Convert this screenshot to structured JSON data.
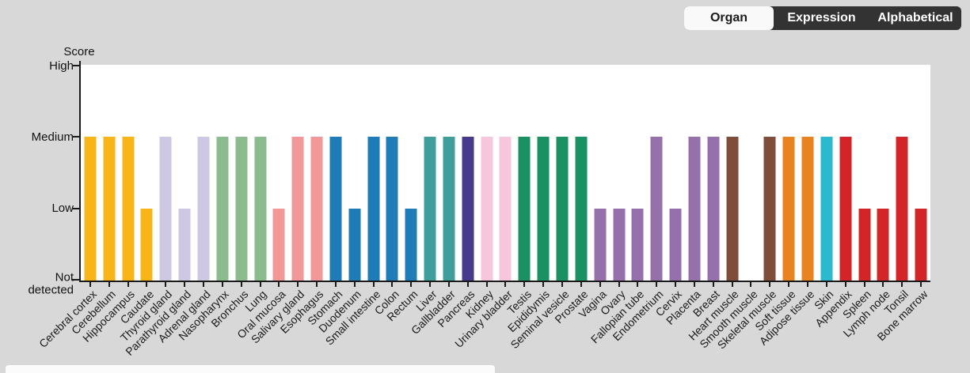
{
  "toolbar": {
    "options": [
      {
        "label": "Organ",
        "selected": true
      },
      {
        "label": "Expression",
        "selected": false
      },
      {
        "label": "Alphabetical",
        "selected": false
      }
    ]
  },
  "colors": {
    "background": "#d8d8d8",
    "plot_background": "#ffffff",
    "axis": "#1a1a1a",
    "toggle_bar": "#333333",
    "toggle_selected": "#f9f9f9"
  },
  "chart_data": {
    "type": "bar",
    "ylabel": "Score",
    "y_ticks": [
      "High",
      "Medium",
      "Low",
      "Not detected"
    ],
    "score_levels": {
      "Not detected": 0,
      "Low": 1,
      "Medium": 2,
      "High": 3
    },
    "ylim": [
      0,
      3
    ],
    "grid": false,
    "legend": false,
    "x_label_rotation": -45,
    "points": [
      {
        "tissue": "Cerebral cortex",
        "score": "Medium",
        "color": "#F9B517"
      },
      {
        "tissue": "Cerebellum",
        "score": "Medium",
        "color": "#F9B517"
      },
      {
        "tissue": "Hippocampus",
        "score": "Medium",
        "color": "#F9B517"
      },
      {
        "tissue": "Caudate",
        "score": "Low",
        "color": "#F9B517"
      },
      {
        "tissue": "Thyroid gland",
        "score": "Medium",
        "color": "#CFC8E2"
      },
      {
        "tissue": "Parathyroid gland",
        "score": "Low",
        "color": "#CFC8E2"
      },
      {
        "tissue": "Adrenal gland",
        "score": "Medium",
        "color": "#CFC8E2"
      },
      {
        "tissue": "Nasopharynx",
        "score": "Medium",
        "color": "#8CBB8D"
      },
      {
        "tissue": "Bronchus",
        "score": "Medium",
        "color": "#8CBB8D"
      },
      {
        "tissue": "Lung",
        "score": "Medium",
        "color": "#8CBB8D"
      },
      {
        "tissue": "Oral mucosa",
        "score": "Low",
        "color": "#F29899"
      },
      {
        "tissue": "Salivary gland",
        "score": "Medium",
        "color": "#F29899"
      },
      {
        "tissue": "Esophagus",
        "score": "Medium",
        "color": "#F29899"
      },
      {
        "tissue": "Stomach",
        "score": "Medium",
        "color": "#1F7CB6"
      },
      {
        "tissue": "Duodenum",
        "score": "Low",
        "color": "#1F7CB6"
      },
      {
        "tissue": "Small intestine",
        "score": "Medium",
        "color": "#1F7CB6"
      },
      {
        "tissue": "Colon",
        "score": "Medium",
        "color": "#1F7CB6"
      },
      {
        "tissue": "Rectum",
        "score": "Low",
        "color": "#1F7CB6"
      },
      {
        "tissue": "Liver",
        "score": "Medium",
        "color": "#3F9E9B"
      },
      {
        "tissue": "Gallbladder",
        "score": "Medium",
        "color": "#3F9E9B"
      },
      {
        "tissue": "Pancreas",
        "score": "Medium",
        "color": "#463A8B"
      },
      {
        "tissue": "Kidney",
        "score": "Medium",
        "color": "#F6C7DC"
      },
      {
        "tissue": "Urinary bladder",
        "score": "Medium",
        "color": "#F6C7DC"
      },
      {
        "tissue": "Testis",
        "score": "Medium",
        "color": "#1A9162"
      },
      {
        "tissue": "Epididymis",
        "score": "Medium",
        "color": "#1A9162"
      },
      {
        "tissue": "Seminal vesicle",
        "score": "Medium",
        "color": "#1A9162"
      },
      {
        "tissue": "Prostate",
        "score": "Medium",
        "color": "#1A9162"
      },
      {
        "tissue": "Vagina",
        "score": "Low",
        "color": "#9570AB"
      },
      {
        "tissue": "Ovary",
        "score": "Low",
        "color": "#9570AB"
      },
      {
        "tissue": "Fallopian tube",
        "score": "Low",
        "color": "#9570AB"
      },
      {
        "tissue": "Endometrium",
        "score": "Medium",
        "color": "#9570AB"
      },
      {
        "tissue": "Cervix",
        "score": "Low",
        "color": "#9570AB"
      },
      {
        "tissue": "Placenta",
        "score": "Medium",
        "color": "#9570AB"
      },
      {
        "tissue": "Breast",
        "score": "Medium",
        "color": "#9570AB"
      },
      {
        "tissue": "Heart muscle",
        "score": "Medium",
        "color": "#7F4E3B"
      },
      {
        "tissue": "Smooth muscle",
        "score": "Not detected",
        "color": "#7F4E3B"
      },
      {
        "tissue": "Skeletal muscle",
        "score": "Medium",
        "color": "#7F4E3B"
      },
      {
        "tissue": "Soft tissue",
        "score": "Medium",
        "color": "#E8831F"
      },
      {
        "tissue": "Adipose tissue",
        "score": "Medium",
        "color": "#E8831F"
      },
      {
        "tissue": "Skin",
        "score": "Medium",
        "color": "#2CB9CD"
      },
      {
        "tissue": "Appendix",
        "score": "Medium",
        "color": "#D32428"
      },
      {
        "tissue": "Spleen",
        "score": "Low",
        "color": "#D32428"
      },
      {
        "tissue": "Lymph node",
        "score": "Low",
        "color": "#D32428"
      },
      {
        "tissue": "Tonsil",
        "score": "Medium",
        "color": "#D32428"
      },
      {
        "tissue": "Bone marrow",
        "score": "Low",
        "color": "#D32428"
      }
    ]
  }
}
